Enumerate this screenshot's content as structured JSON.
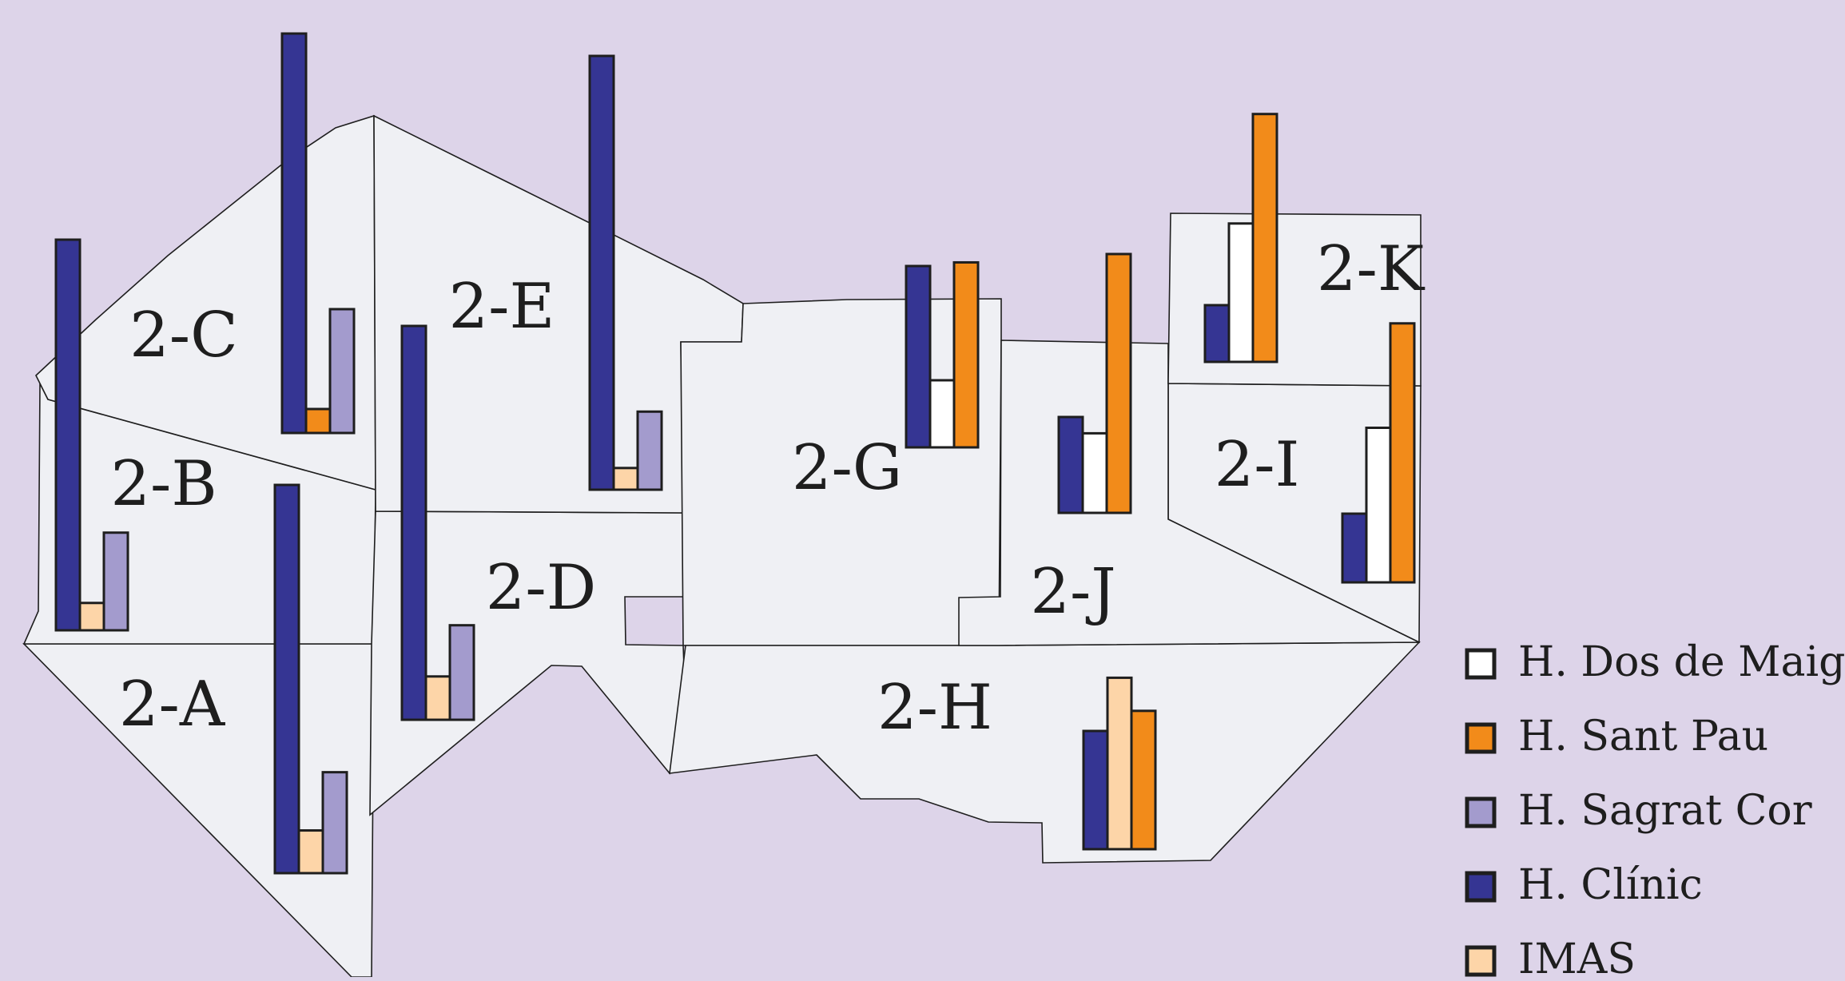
{
  "colors": {
    "background": "#ddd4e9",
    "region_fill": "#eff0f4",
    "outline": "#1e1e1e"
  },
  "series": [
    {
      "key": "dosdemaig",
      "name": "H. Dos de Maig",
      "color": "#ffffff"
    },
    {
      "key": "santpau",
      "name": "H. Sant Pau",
      "color": "#f28b1a"
    },
    {
      "key": "sagratcor",
      "name": "H. Sagrat Cor",
      "color": "#a39bcd"
    },
    {
      "key": "clinic",
      "name": "H. Clínic",
      "color": "#353593"
    },
    {
      "key": "imas",
      "name": "IMAS",
      "color": "#fdd5a8"
    }
  ],
  "regions": [
    {
      "id": "a",
      "label": "2-A",
      "values": {
        "clinic": 100,
        "imas": 11,
        "sagratcor": 26
      }
    },
    {
      "id": "b",
      "label": "2-B",
      "values": {
        "clinic": 100,
        "imas": 7,
        "sagratcor": 25
      }
    },
    {
      "id": "c",
      "label": "2-C",
      "values": {
        "clinic": 100,
        "santpau": 6,
        "sagratcor": 31
      }
    },
    {
      "id": "d",
      "label": "2-D",
      "values": {
        "clinic": 100,
        "imas": 11,
        "sagratcor": 24
      }
    },
    {
      "id": "e",
      "label": "2-E",
      "values": {
        "clinic": 100,
        "imas": 5,
        "sagratcor": 18
      }
    },
    {
      "id": "g",
      "label": "2-G",
      "values": {
        "clinic": 100,
        "dosdemaig": 37,
        "santpau": 102
      }
    },
    {
      "id": "h",
      "label": "2-H",
      "values": {
        "clinic": 100,
        "imas": 145,
        "santpau": 117
      }
    },
    {
      "id": "i",
      "label": "2-I",
      "values": {
        "clinic": 100,
        "dosdemaig": 225,
        "santpau": 377
      }
    },
    {
      "id": "j",
      "label": "2-J",
      "values": {
        "clinic": 100,
        "dosdemaig": 83,
        "santpau": 270
      }
    },
    {
      "id": "k",
      "label": "2-K",
      "values": {
        "clinic": 100,
        "dosdemaig": 244,
        "santpau": 437
      }
    }
  ]
}
